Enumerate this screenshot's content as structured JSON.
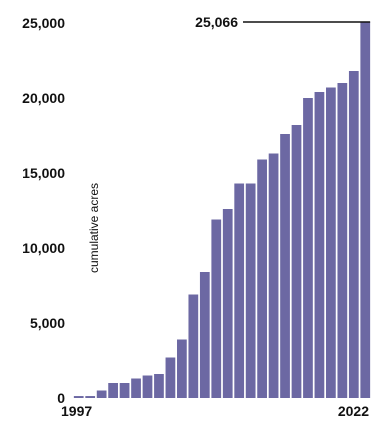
{
  "chart_data": {
    "type": "bar",
    "bar_color": "#6c68a3",
    "ylabel": "cumulative acres",
    "ylim": [
      0,
      25000
    ],
    "y_ticks": [
      0,
      5000,
      10000,
      15000,
      20000,
      25000
    ],
    "y_tick_labels": [
      "0",
      "5,000",
      "10,000",
      "15,000",
      "20,000",
      "25,000"
    ],
    "x_tick_labels": [
      "1997",
      "2022"
    ],
    "categories": [
      "1997",
      "1998",
      "1999",
      "2000",
      "2001",
      "2002",
      "2003",
      "2004",
      "2005",
      "2006",
      "2007",
      "2008",
      "2009",
      "2010",
      "2011",
      "2012",
      "2013",
      "2014",
      "2015",
      "2016",
      "2017",
      "2018",
      "2019",
      "2020",
      "2021",
      "2022"
    ],
    "values": [
      130,
      130,
      500,
      1000,
      1000,
      1300,
      1500,
      1600,
      2700,
      3900,
      6900,
      8400,
      11900,
      12600,
      14300,
      14300,
      15900,
      16300,
      17600,
      18200,
      20000,
      20400,
      20700,
      21000,
      21800,
      25066
    ],
    "annotation": {
      "text": "25,066",
      "category": "2022"
    }
  }
}
